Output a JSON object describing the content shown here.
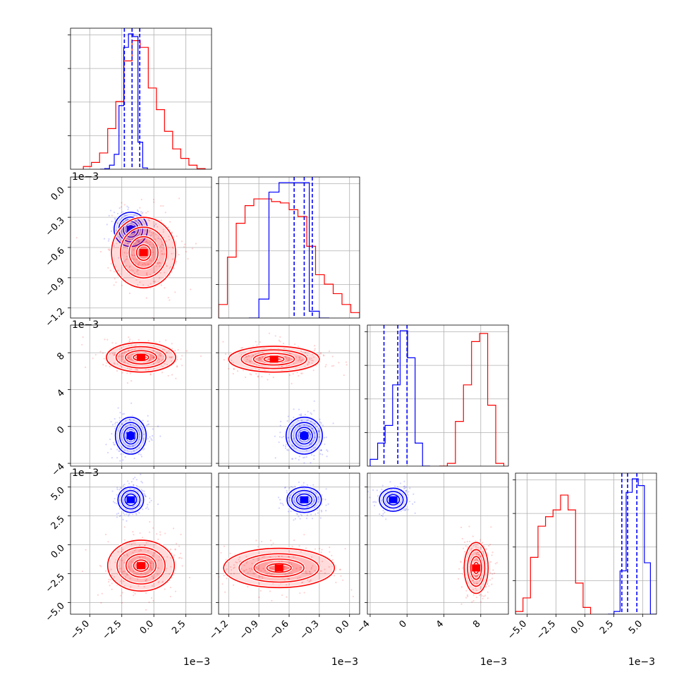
{
  "chart_data": {
    "type": "corner",
    "colors": {
      "series_a": "#0000ff",
      "series_b": "#ff0000"
    },
    "grid": true,
    "scale_offset": "1e−3",
    "params": [
      {
        "range": [
          -6.5,
          4.5
        ],
        "ticks": [
          -5.0,
          -2.5,
          0.0,
          2.5
        ],
        "tick_labels": [
          "−5.0",
          "−2.5",
          "0.0",
          "2.5"
        ]
      },
      {
        "range": [
          -1.3,
          0.1
        ],
        "ticks": [
          -1.2,
          -0.9,
          -0.6,
          -0.3,
          0.0
        ],
        "tick_labels": [
          "−1.2",
          "−0.9",
          "−0.6",
          "−0.3",
          "0.0"
        ]
      },
      {
        "range": [
          -4.3,
          11.0
        ],
        "ticks": [
          -4,
          0,
          4,
          8
        ],
        "tick_labels": [
          "−4",
          "0",
          "4",
          "8"
        ]
      },
      {
        "range": [
          -6.0,
          6.2
        ],
        "ticks": [
          -5.0,
          -2.5,
          0.0,
          2.5,
          5.0
        ],
        "tick_labels": [
          "−5.0",
          "−2.5",
          "0.0",
          "2.5",
          "5.0"
        ]
      }
    ],
    "diagonal": [
      {
        "blue_hist": [
          0.0,
          0.005,
          0.03,
          0.11,
          0.47,
          0.9,
          1.0,
          0.98,
          0.2,
          0.01
        ],
        "red_hist": [
          0.02,
          0.05,
          0.12,
          0.3,
          0.5,
          0.8,
          0.95,
          0.9,
          0.6,
          0.44,
          0.28,
          0.15,
          0.08,
          0.03,
          0.005
        ],
        "quantile_lines": [
          -2.3,
          -1.7,
          -1.1
        ]
      },
      {
        "blue_hist": [
          0.0,
          0.14,
          0.93,
          1.0,
          1.0,
          1.0,
          0.05,
          0.0
        ],
        "red_hist": [
          0.1,
          0.45,
          0.7,
          0.83,
          0.88,
          0.88,
          0.86,
          0.85,
          0.8,
          0.75,
          0.53,
          0.32,
          0.25,
          0.18,
          0.1,
          0.04
        ],
        "quantile_lines": [
          -0.55,
          -0.45,
          -0.37
        ]
      },
      {
        "blue_hist": [
          0.05,
          0.17,
          0.3,
          0.6,
          1.0,
          0.8,
          0.17,
          0.0
        ],
        "red_hist": [
          0.0,
          0.02,
          0.33,
          0.6,
          0.92,
          0.98,
          0.45,
          0.02
        ],
        "quantile_lines": [
          -2.5,
          -1.0,
          0.0
        ]
      },
      {
        "blue_hist": [
          0.0,
          0.02,
          0.32,
          0.9,
          1.0,
          0.95,
          0.38,
          0.0
        ],
        "red_hist": [
          0.02,
          0.12,
          0.42,
          0.65,
          0.72,
          0.77,
          0.88,
          0.77,
          0.23,
          0.05
        ],
        "quantile_lines": [
          3.2,
          3.7,
          4.5
        ]
      }
    ],
    "blobs": [
      {
        "pair": [
          0,
          1
        ],
        "series": "blue",
        "cx": -1.8,
        "cy": -0.42,
        "rx": 1.3,
        "ry": 0.17
      },
      {
        "pair": [
          0,
          1
        ],
        "series": "red",
        "cx": -0.8,
        "cy": -0.65,
        "rx": 2.5,
        "ry": 0.35
      },
      {
        "pair": [
          0,
          2
        ],
        "series": "blue",
        "cx": -1.8,
        "cy": -1.0,
        "rx": 1.2,
        "ry": 2.0
      },
      {
        "pair": [
          0,
          2
        ],
        "series": "red",
        "cx": -1.0,
        "cy": 7.5,
        "rx": 2.7,
        "ry": 1.6
      },
      {
        "pair": [
          1,
          2
        ],
        "series": "blue",
        "cx": -0.45,
        "cy": -1.0,
        "rx": 0.18,
        "ry": 2.0
      },
      {
        "pair": [
          1,
          2
        ],
        "series": "red",
        "cx": -0.75,
        "cy": 7.3,
        "rx": 0.45,
        "ry": 1.4
      },
      {
        "pair": [
          0,
          3
        ],
        "series": "blue",
        "cx": -1.8,
        "cy": 3.9,
        "rx": 1.0,
        "ry": 1.1
      },
      {
        "pair": [
          0,
          3
        ],
        "series": "red",
        "cx": -1.0,
        "cy": -1.8,
        "rx": 2.6,
        "ry": 2.2
      },
      {
        "pair": [
          1,
          3
        ],
        "series": "blue",
        "cx": -0.45,
        "cy": 3.9,
        "rx": 0.17,
        "ry": 1.1
      },
      {
        "pair": [
          1,
          3
        ],
        "series": "red",
        "cx": -0.7,
        "cy": -2.0,
        "rx": 0.55,
        "ry": 1.7
      },
      {
        "pair": [
          2,
          3
        ],
        "series": "blue",
        "cx": -1.5,
        "cy": 3.9,
        "rx": 1.5,
        "ry": 1.0
      },
      {
        "pair": [
          2,
          3
        ],
        "series": "red",
        "cx": 7.5,
        "cy": -2.0,
        "rx": 1.3,
        "ry": 2.2
      }
    ]
  }
}
